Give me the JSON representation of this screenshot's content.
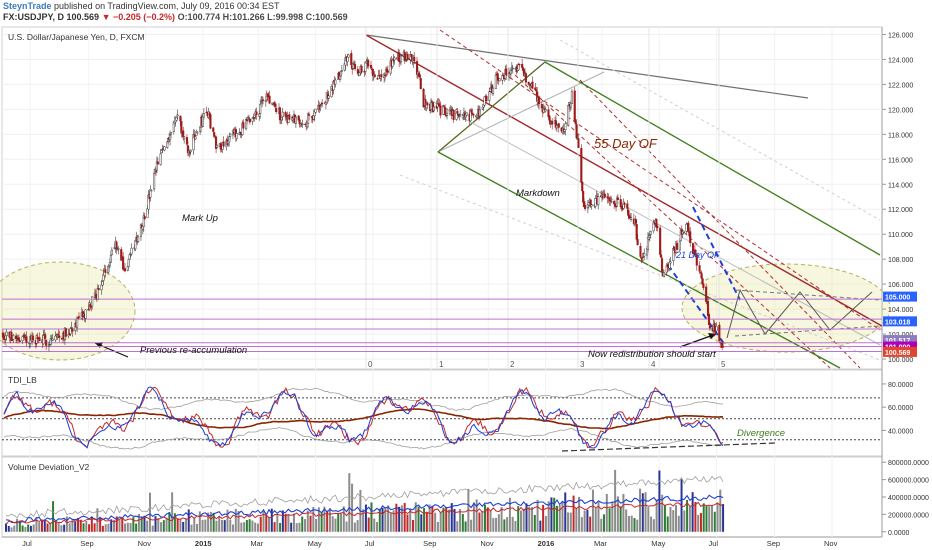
{
  "header": {
    "author": "SteynTrade",
    "published": "published on TradingView.com, July 09, 2016 00:34 EST",
    "symbol": "FX:USDJPY, D",
    "last": "100.569",
    "change": "▼ −0.205 (−0.2%)",
    "ohlc": "O:100.774 H:101.266 L:99.998 C:100.569"
  },
  "chart_data": [
    {
      "type": "candlestick",
      "title": "U.S. Dollar/Japanese Yen, D, FXCM",
      "x_tick_labels": [
        "Jul",
        "Sep",
        "Nov",
        "2015",
        "Mar",
        "May",
        "Jul",
        "Sep",
        "Nov",
        "2016",
        "Mar",
        "May",
        "Jul",
        "Sep",
        "Nov"
      ],
      "y_tick_labels": [
        "126.000",
        "124.000",
        "122.000",
        "120.000",
        "118.000",
        "116.000",
        "114.000",
        "112.000",
        "110.000",
        "108.000",
        "106.000",
        "104.000",
        "102.000",
        "100.000"
      ],
      "ylim": [
        99.2,
        126.6
      ],
      "close_path": {
        "x": [
          "2014-06-01",
          "2014-06-25",
          "2014-07-20",
          "2014-08-10",
          "2014-08-28",
          "2014-09-12",
          "2014-09-30",
          "2014-10-10",
          "2014-10-31",
          "2014-11-15",
          "2014-12-05",
          "2014-12-16",
          "2015-01-05",
          "2015-01-16",
          "2015-02-05",
          "2015-02-25",
          "2015-03-10",
          "2015-03-25",
          "2015-04-20",
          "2015-05-10",
          "2015-05-28",
          "2015-06-05",
          "2015-06-12",
          "2015-06-25",
          "2015-07-10",
          "2015-07-25",
          "2015-08-10",
          "2015-08-18",
          "2015-08-24",
          "2015-09-10",
          "2015-09-30",
          "2015-10-20",
          "2015-11-10",
          "2015-12-02",
          "2015-12-20",
          "2016-01-05",
          "2016-01-20",
          "2016-01-29",
          "2016-02-05",
          "2016-02-11",
          "2016-02-28",
          "2016-03-20",
          "2016-04-05",
          "2016-04-11",
          "2016-04-28",
          "2016-05-05",
          "2016-05-30",
          "2016-06-10",
          "2016-06-20",
          "2016-06-24",
          "2016-07-01",
          "2016-07-08"
        ],
        "y": [
          102.0,
          101.6,
          101.5,
          102.2,
          103.5,
          105.5,
          109.5,
          107.0,
          111.5,
          116.0,
          119.5,
          116.5,
          120.0,
          117.0,
          118.0,
          119.5,
          121.0,
          119.5,
          119.0,
          120.5,
          123.0,
          124.5,
          123.0,
          123.5,
          122.5,
          124.0,
          124.5,
          123.0,
          120.5,
          120.0,
          119.5,
          119.5,
          122.5,
          123.5,
          121.5,
          119.0,
          118.5,
          121.0,
          117.0,
          112.0,
          113.0,
          112.5,
          111.0,
          108.0,
          111.0,
          106.5,
          111.0,
          107.5,
          105.0,
          102.5,
          102.2,
          100.6
        ]
      },
      "price_markers": [
        {
          "label": "105.000",
          "color": "#2962ff"
        },
        {
          "label": "103.018",
          "color": "#2962ff"
        },
        {
          "label": "101.517",
          "color": "#8e7cc3"
        },
        {
          "label": "101.000",
          "color": "#b000b5"
        },
        {
          "label": "100.569",
          "color": "#e0462f"
        }
      ],
      "horizontal_levels": [
        104.8,
        103.2,
        102.4,
        101.3,
        101.0,
        100.6
      ],
      "wave_labels": [
        "0",
        "1",
        "2",
        "3",
        "4",
        "5"
      ],
      "annotations": {
        "markup": "Mark Up",
        "markdown": "Markdown",
        "of55": "55 Day OF",
        "of21": "21 Day OF",
        "reaccum": "Previous re-accumulation",
        "redistribution": "Now redistribution should start"
      }
    },
    {
      "type": "line",
      "title": "TDI_LB",
      "y_tick_labels": [
        "80.0000",
        "60.0000",
        "40.0000"
      ],
      "ylim": [
        18,
        92
      ],
      "reference_levels": [
        68,
        50,
        32
      ],
      "annotation": "Divergence"
    },
    {
      "type": "bar",
      "title": "Volume Deviation_V2",
      "y_tick_labels": [
        "800000.0000",
        "600000.0000",
        "400000.0000",
        "200000.0000",
        "0.0000"
      ],
      "ylim": [
        -60000,
        860000
      ]
    }
  ],
  "colors": {
    "candle_up": "#3a3a3a",
    "candle_down": "#9e1b1b",
    "trend_red": "#a3262b",
    "channel_green": "#3d7d1a",
    "tdi_red": "#c62828",
    "tdi_blue": "#1e3fd6",
    "tdi_brown": "#8b2500",
    "volume_gray": "#8c8c8c",
    "level_purple": "#c071d4"
  }
}
